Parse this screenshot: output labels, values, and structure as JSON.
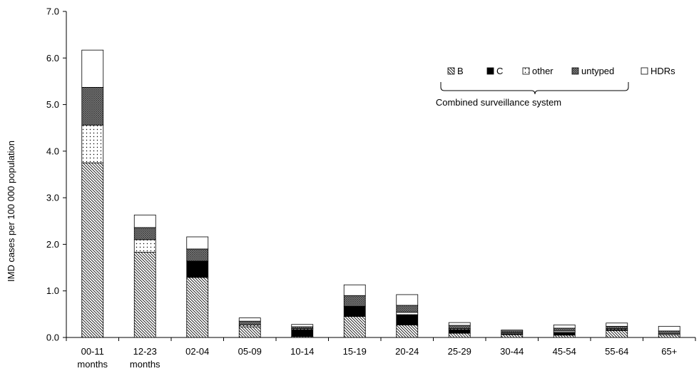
{
  "chart_data": {
    "type": "bar",
    "stacked": true,
    "title": "",
    "xlabel": "",
    "ylabel": "IMD cases per 100 000 population",
    "ylim": [
      0,
      7
    ],
    "yticks": [
      "0.0",
      "1.0",
      "2.0",
      "3.0",
      "4.0",
      "5.0",
      "6.0",
      "7.0"
    ],
    "categories": [
      [
        "00-11",
        "months"
      ],
      [
        "12-23",
        "months"
      ],
      [
        "02-04"
      ],
      [
        "05-09"
      ],
      [
        "10-14"
      ],
      [
        "15-19"
      ],
      [
        "20-24"
      ],
      [
        "25-29"
      ],
      [
        "30-44"
      ],
      [
        "45-54"
      ],
      [
        "55-64"
      ],
      [
        "65+"
      ]
    ],
    "series": [
      {
        "name": "B",
        "pattern": "hatch",
        "values": [
          3.75,
          1.83,
          1.29,
          0.23,
          0.02,
          0.45,
          0.27,
          0.09,
          0.06,
          0.05,
          0.15,
          0.06
        ]
      },
      {
        "name": "C",
        "pattern": "solid-black",
        "values": [
          0.0,
          0.0,
          0.35,
          0.0,
          0.15,
          0.22,
          0.22,
          0.08,
          0.02,
          0.06,
          0.02,
          0.0
        ]
      },
      {
        "name": "other",
        "pattern": "dots",
        "values": [
          0.81,
          0.27,
          0.0,
          0.04,
          0.02,
          0.0,
          0.05,
          0.02,
          0.02,
          0.03,
          0.02,
          0.02
        ]
      },
      {
        "name": "untyped",
        "pattern": "crosshatch",
        "values": [
          0.81,
          0.26,
          0.26,
          0.08,
          0.04,
          0.23,
          0.15,
          0.07,
          0.04,
          0.06,
          0.05,
          0.06
        ]
      },
      {
        "name": "HDRs",
        "pattern": "white",
        "values": [
          0.8,
          0.27,
          0.26,
          0.07,
          0.05,
          0.23,
          0.23,
          0.06,
          0.02,
          0.07,
          0.07,
          0.1
        ]
      }
    ],
    "legend_caption": "Combined surveillance system",
    "legend_placement": "top-right",
    "grid": false
  }
}
